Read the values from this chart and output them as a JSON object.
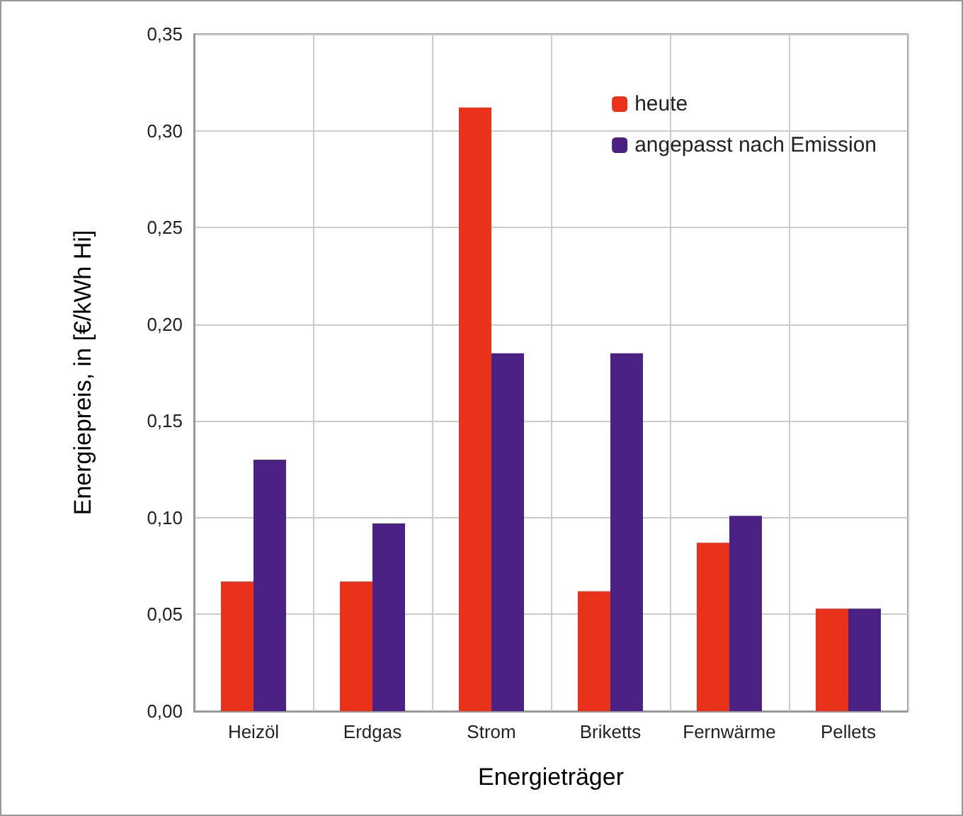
{
  "chart_data": {
    "type": "bar",
    "xlabel": "Energieträger",
    "ylabel": "Energiepreis, in [€/kWh Hi]",
    "categories": [
      "Heizöl",
      "Erdgas",
      "Strom",
      "Briketts",
      "Fernwärme",
      "Pellets"
    ],
    "series": [
      {
        "name": "heute",
        "color": "#e8321a",
        "values": [
          0.067,
          0.067,
          0.312,
          0.062,
          0.087,
          0.053
        ]
      },
      {
        "name": "angepasst nach Emission",
        "color": "#4b2284",
        "values": [
          0.13,
          0.097,
          0.185,
          0.185,
          0.101,
          0.053
        ]
      }
    ],
    "ylim": [
      0,
      0.35
    ],
    "yticks": [
      {
        "value": 0,
        "label": "0,00"
      },
      {
        "value": 0.05,
        "label": "0,05"
      },
      {
        "value": 0.1,
        "label": "0,10"
      },
      {
        "value": 0.15,
        "label": "0,15"
      },
      {
        "value": 0.2,
        "label": "0,20"
      },
      {
        "value": 0.25,
        "label": "0,25"
      },
      {
        "value": 0.3,
        "label": "0,30"
      },
      {
        "value": 0.35,
        "label": "0,35"
      }
    ],
    "grid": true,
    "legend": "top right"
  }
}
